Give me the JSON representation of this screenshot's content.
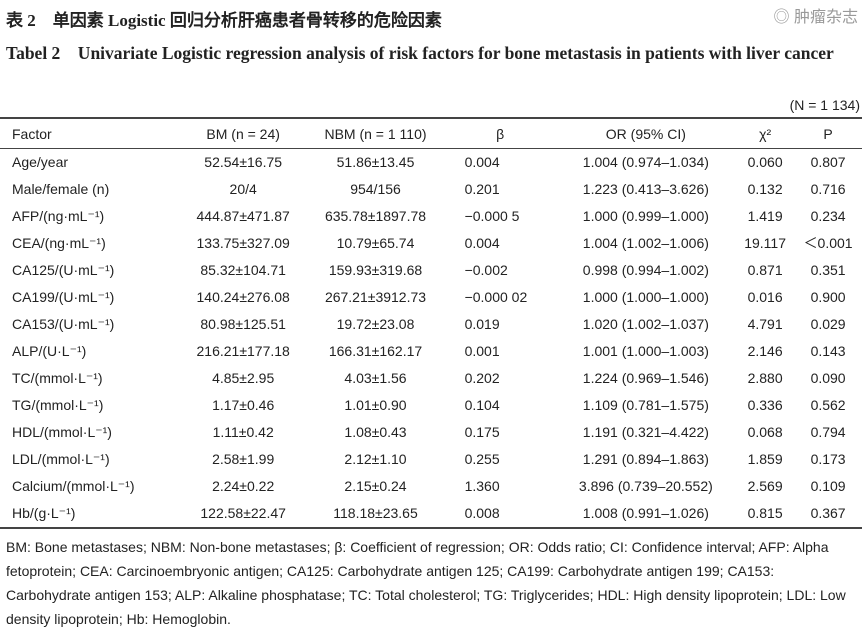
{
  "title_cn": "表 2　单因素 Logistic 回归分析肝癌患者骨转移的危险因素",
  "title_en": "Tabel 2　Univariate Logistic regression analysis of risk factors for bone metastasis in patients with liver cancer",
  "n_total": "(N = 1 134)",
  "headers": [
    "Factor",
    "BM (n = 24)",
    "NBM (n = 1 110)",
    "β",
    "OR (95% CI)",
    "χ²",
    "P"
  ],
  "rows": [
    [
      "Age/year",
      "52.54±16.75",
      "51.86±13.45",
      "0.004",
      "1.004 (0.974–1.034)",
      "0.060",
      "0.807"
    ],
    [
      "Male/female (n)",
      "20/4",
      "954/156",
      "0.201",
      "1.223 (0.413–3.626)",
      "0.132",
      "0.716"
    ],
    [
      "AFP/(ng·mL⁻¹)",
      "444.87±471.87",
      "635.78±1897.78",
      "−0.000 5",
      "1.000 (0.999–1.000)",
      "1.419",
      "0.234"
    ],
    [
      "CEA/(ng·mL⁻¹)",
      "133.75±327.09",
      "10.79±65.74",
      "0.004",
      "1.004 (1.002–1.006)",
      "19.117",
      "＜0.001"
    ],
    [
      "CA125/(U·mL⁻¹)",
      "85.32±104.71",
      "159.93±319.68",
      "−0.002",
      "0.998 (0.994–1.002)",
      "0.871",
      "0.351"
    ],
    [
      "CA199/(U·mL⁻¹)",
      "140.24±276.08",
      "267.21±3912.73",
      "−0.000 02",
      "1.000 (1.000–1.000)",
      "0.016",
      "0.900"
    ],
    [
      "CA153/(U·mL⁻¹)",
      "80.98±125.51",
      "19.72±23.08",
      "0.019",
      "1.020 (1.002–1.037)",
      "4.791",
      "0.029"
    ],
    [
      "ALP/(U·L⁻¹)",
      "216.21±177.18",
      "166.31±162.17",
      "0.001",
      "1.001 (1.000–1.003)",
      "2.146",
      "0.143"
    ],
    [
      "TC/(mmol·L⁻¹)",
      "4.85±2.95",
      "4.03±1.56",
      "0.202",
      "1.224 (0.969–1.546)",
      "2.880",
      "0.090"
    ],
    [
      "TG/(mmol·L⁻¹)",
      "1.17±0.46",
      "1.01±0.90",
      "0.104",
      "1.109 (0.781–1.575)",
      "0.336",
      "0.562"
    ],
    [
      "HDL/(mmol·L⁻¹)",
      "1.11±0.42",
      "1.08±0.43",
      "0.175",
      "1.191 (0.321–4.422)",
      "0.068",
      "0.794"
    ],
    [
      "LDL/(mmol·L⁻¹)",
      "2.58±1.99",
      "2.12±1.10",
      "0.255",
      "1.291 (0.894–1.863)",
      "1.859",
      "0.173"
    ],
    [
      "Calcium/(mmol·L⁻¹)",
      "2.24±0.22",
      "2.15±0.24",
      "1.360",
      "3.896 (0.739–20.552)",
      "2.569",
      "0.109"
    ],
    [
      "Hb/(g·L⁻¹)",
      "122.58±22.47",
      "118.18±23.65",
      "0.008",
      "1.008 (0.991–1.026)",
      "0.815",
      "0.367"
    ]
  ],
  "footnote": "BM: Bone metastases; NBM: Non-bone metastases; β: Coefficient of regression; OR: Odds ratio; CI: Confidence interval; AFP: Alpha fetoprotein; CEA: Carcinoembryonic antigen; CA125: Carbohydrate antigen 125; CA199: Carbohydrate antigen 199; CA153: Carbohydrate antigen 153; ALP: Alkaline phosphatase; TC: Total cholesterol; TG: Triglycerides; HDL: High density lipoprotein; LDL: Low density lipoprotein; Hb: Hemoglobin.",
  "watermark": "肿瘤杂志"
}
